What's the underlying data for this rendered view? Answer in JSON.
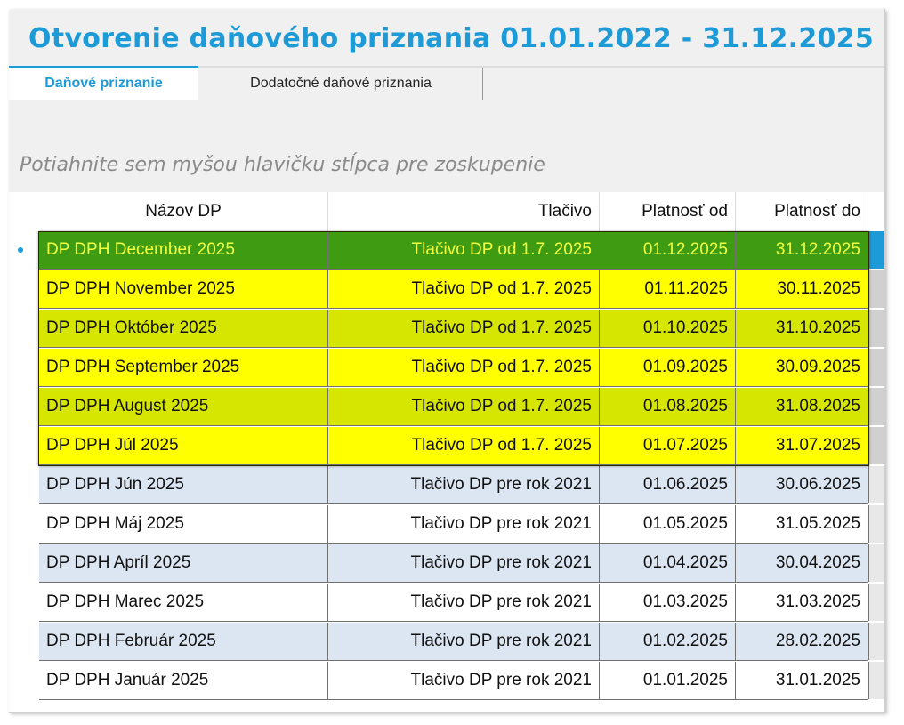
{
  "title": "Otvorenie daňového priznania 01.01.2022 - 31.12.2025",
  "tabs": [
    {
      "label": "Daňové priznanie",
      "active": true
    },
    {
      "label": "Dodatočné daňové priznania",
      "active": false
    }
  ],
  "group_hint": "Potiahnite sem myšou hlavičku stĺpca pre zoskupenie",
  "columns": [
    "Názov DP",
    "Tlačivo",
    "Platnosť od",
    "Platnosť do"
  ],
  "rows": [
    {
      "name": "DP DPH December 2025",
      "form": "Tlačivo DP od 1.7. 2025",
      "from": "01.12.2025",
      "to": "31.12.2025",
      "style": "current"
    },
    {
      "name": "DP DPH November 2025",
      "form": "Tlačivo DP od 1.7. 2025",
      "from": "01.11.2025",
      "to": "30.11.2025",
      "style": "sel-a"
    },
    {
      "name": "DP DPH Október 2025",
      "form": "Tlačivo DP od 1.7. 2025",
      "from": "01.10.2025",
      "to": "31.10.2025",
      "style": "sel-b"
    },
    {
      "name": "DP DPH September 2025",
      "form": "Tlačivo DP od 1.7. 2025",
      "from": "01.09.2025",
      "to": "30.09.2025",
      "style": "sel-a"
    },
    {
      "name": "DP DPH August 2025",
      "form": "Tlačivo DP od 1.7. 2025",
      "from": "01.08.2025",
      "to": "31.08.2025",
      "style": "sel-b"
    },
    {
      "name": "DP DPH Júl 2025",
      "form": "Tlačivo DP od 1.7. 2025",
      "from": "01.07.2025",
      "to": "31.07.2025",
      "style": "sel-a"
    },
    {
      "name": "DP DPH Jún 2025",
      "form": "Tlačivo DP pre rok 2021",
      "from": "01.06.2025",
      "to": "30.06.2025",
      "style": "alt"
    },
    {
      "name": "DP DPH Máj 2025",
      "form": "Tlačivo DP pre rok 2021",
      "from": "01.05.2025",
      "to": "31.05.2025",
      "style": "plain"
    },
    {
      "name": "DP DPH Apríl 2025",
      "form": "Tlačivo DP pre rok 2021",
      "from": "01.04.2025",
      "to": "30.04.2025",
      "style": "alt"
    },
    {
      "name": "DP DPH Marec 2025",
      "form": "Tlačivo DP pre rok 2021",
      "from": "01.03.2025",
      "to": "31.03.2025",
      "style": "plain"
    },
    {
      "name": "DP DPH Február 2025",
      "form": "Tlačivo DP pre rok 2021",
      "from": "01.02.2025",
      "to": "28.02.2025",
      "style": "alt"
    },
    {
      "name": "DP DPH Január 2025",
      "form": "Tlačivo DP pre rok 2021",
      "from": "01.01.2025",
      "to": "31.01.2025",
      "style": "plain"
    }
  ],
  "colors": {
    "accent": "#1e9ad6",
    "current_row": "#3f9c12",
    "selected_a": "#ffff00",
    "selected_b": "#d6e600",
    "alt_row": "#dce6f2"
  }
}
